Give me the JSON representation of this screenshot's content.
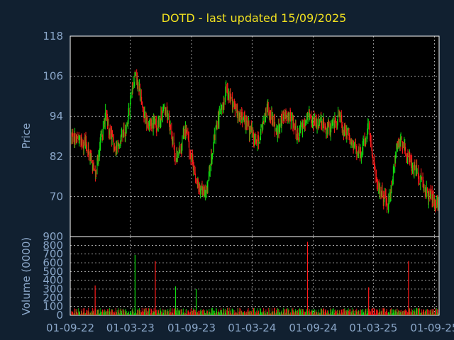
{
  "chart_data": [
    {
      "type": "candlestick",
      "title": "DOTD - last updated 15/09/2025",
      "xlabel": "",
      "ylabel": "Price",
      "ylim": [
        58,
        118
      ],
      "y_ticks": [
        70,
        82,
        94,
        106,
        118
      ],
      "x_ticks": [
        "01-09-22",
        "01-03-23",
        "01-09-23",
        "01-03-24",
        "01-09-24",
        "01-03-25",
        "01-09-25"
      ],
      "grid": true,
      "colors": {
        "up": "#10e010",
        "down": "#ff1a1a",
        "background": "#000000"
      },
      "x": [
        "2022-09",
        "2022-10",
        "2022-11",
        "2022-12",
        "2023-01",
        "2023-02",
        "2023-03",
        "2023-04",
        "2023-05",
        "2023-06",
        "2023-07",
        "2023-08",
        "2023-09",
        "2023-10",
        "2023-11",
        "2023-12",
        "2024-01",
        "2024-02",
        "2024-03",
        "2024-04",
        "2024-05",
        "2024-06",
        "2024-07",
        "2024-08",
        "2024-09",
        "2024-10",
        "2024-11",
        "2024-12",
        "2025-01",
        "2025-02",
        "2025-03",
        "2025-04",
        "2025-05",
        "2025-06",
        "2025-07",
        "2025-08",
        "2025-09"
      ],
      "close": [
        88,
        86,
        77,
        94,
        84,
        90,
        108,
        93,
        91,
        97,
        81,
        90,
        74,
        71,
        92,
        101,
        96,
        91,
        86,
        96,
        90,
        95,
        89,
        94,
        92,
        90,
        94,
        88,
        82,
        90,
        72,
        67,
        88,
        82,
        75,
        70,
        67
      ]
    },
    {
      "type": "bar",
      "ylabel": "Volume (0000)",
      "ylim": [
        0,
        900
      ],
      "y_ticks": [
        0,
        100,
        200,
        300,
        400,
        500,
        600,
        700,
        800,
        900
      ],
      "x_ticks": [
        "01-09-22",
        "01-03-23",
        "01-09-23",
        "01-03-24",
        "01-09-24",
        "01-03-25",
        "01-09-25"
      ],
      "spikes": [
        {
          "x": "2022-11",
          "value": 340,
          "direction": "down"
        },
        {
          "x": "2023-03",
          "value": 690,
          "direction": "up"
        },
        {
          "x": "2023-05",
          "value": 620,
          "direction": "down"
        },
        {
          "x": "2023-07",
          "value": 330,
          "direction": "up"
        },
        {
          "x": "2023-09",
          "value": 300,
          "direction": "up"
        },
        {
          "x": "2024-08",
          "value": 840,
          "direction": "down"
        },
        {
          "x": "2025-02",
          "value": 320,
          "direction": "down"
        },
        {
          "x": "2025-06",
          "value": 620,
          "direction": "down"
        }
      ],
      "typical_volume": 50
    }
  ]
}
